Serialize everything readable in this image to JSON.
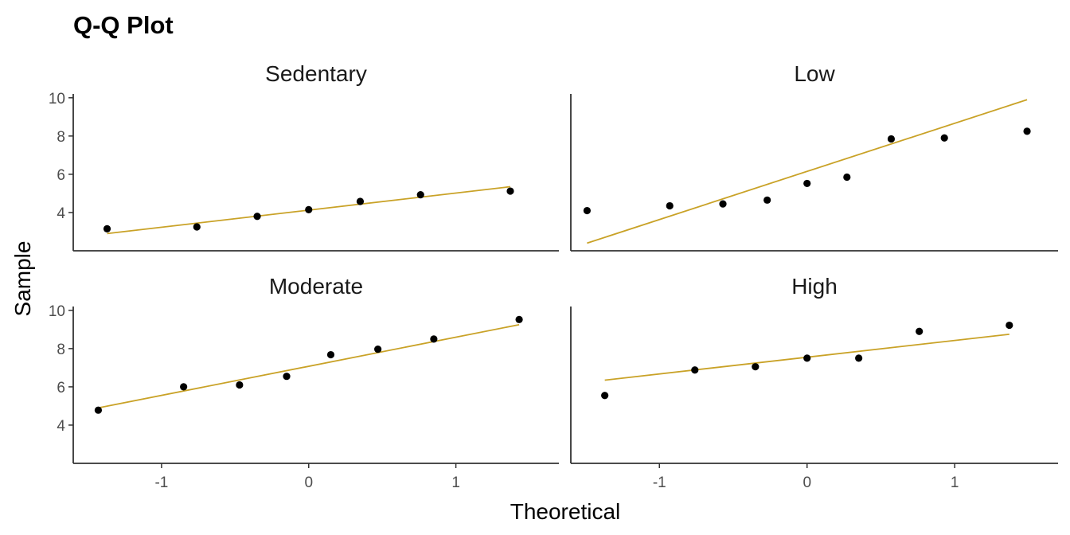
{
  "chart_data": {
    "type": "scatter",
    "title": "Q-Q Plot",
    "xlabel": "Theoretical",
    "ylabel": "Sample",
    "xlim": [
      -1.6,
      1.7
    ],
    "ylim": [
      2.0,
      10.2
    ],
    "x_ticks": [
      -1,
      0,
      1
    ],
    "x_tick_labels": [
      "-1",
      "0",
      "1"
    ],
    "y_ticks": [
      4,
      6,
      8,
      10
    ],
    "y_tick_labels": [
      "4",
      "6",
      "8",
      "10"
    ],
    "grid": false,
    "colors": {
      "points": "#000000",
      "reference_line": "#C9A227",
      "axis": "#333333"
    },
    "panels": [
      {
        "name": "Sedentary",
        "points": [
          {
            "x": -1.37,
            "y": 3.15
          },
          {
            "x": -0.76,
            "y": 3.25
          },
          {
            "x": -0.35,
            "y": 3.8
          },
          {
            "x": 0.0,
            "y": 4.15
          },
          {
            "x": 0.35,
            "y": 4.58
          },
          {
            "x": 0.76,
            "y": 4.93
          },
          {
            "x": 1.37,
            "y": 5.12
          }
        ],
        "line": {
          "x1": -1.37,
          "y1": 2.9,
          "x2": 1.37,
          "y2": 5.35
        }
      },
      {
        "name": "Low",
        "points": [
          {
            "x": -1.49,
            "y": 4.1
          },
          {
            "x": -0.93,
            "y": 4.35
          },
          {
            "x": -0.57,
            "y": 4.45
          },
          {
            "x": -0.27,
            "y": 4.65
          },
          {
            "x": 0.0,
            "y": 5.52
          },
          {
            "x": 0.27,
            "y": 5.85
          },
          {
            "x": 0.57,
            "y": 7.85
          },
          {
            "x": 0.93,
            "y": 7.9
          },
          {
            "x": 1.49,
            "y": 8.25
          }
        ],
        "line": {
          "x1": -1.49,
          "y1": 2.4,
          "x2": 1.49,
          "y2": 9.9
        }
      },
      {
        "name": "Moderate",
        "points": [
          {
            "x": -1.43,
            "y": 4.78
          },
          {
            "x": -0.85,
            "y": 6.0
          },
          {
            "x": -0.47,
            "y": 6.1
          },
          {
            "x": -0.15,
            "y": 6.55
          },
          {
            "x": 0.15,
            "y": 7.68
          },
          {
            "x": 0.47,
            "y": 7.97
          },
          {
            "x": 0.85,
            "y": 8.5
          },
          {
            "x": 1.43,
            "y": 9.52
          }
        ],
        "line": {
          "x1": -1.43,
          "y1": 4.9,
          "x2": 1.43,
          "y2": 9.25
        }
      },
      {
        "name": "High",
        "points": [
          {
            "x": -1.37,
            "y": 5.55
          },
          {
            "x": -0.76,
            "y": 6.88
          },
          {
            "x": -0.35,
            "y": 7.05
          },
          {
            "x": 0.0,
            "y": 7.5
          },
          {
            "x": 0.35,
            "y": 7.5
          },
          {
            "x": 0.76,
            "y": 8.9
          },
          {
            "x": 1.37,
            "y": 9.22
          }
        ],
        "line": {
          "x1": -1.37,
          "y1": 6.35,
          "x2": 1.37,
          "y2": 8.75
        }
      }
    ]
  }
}
